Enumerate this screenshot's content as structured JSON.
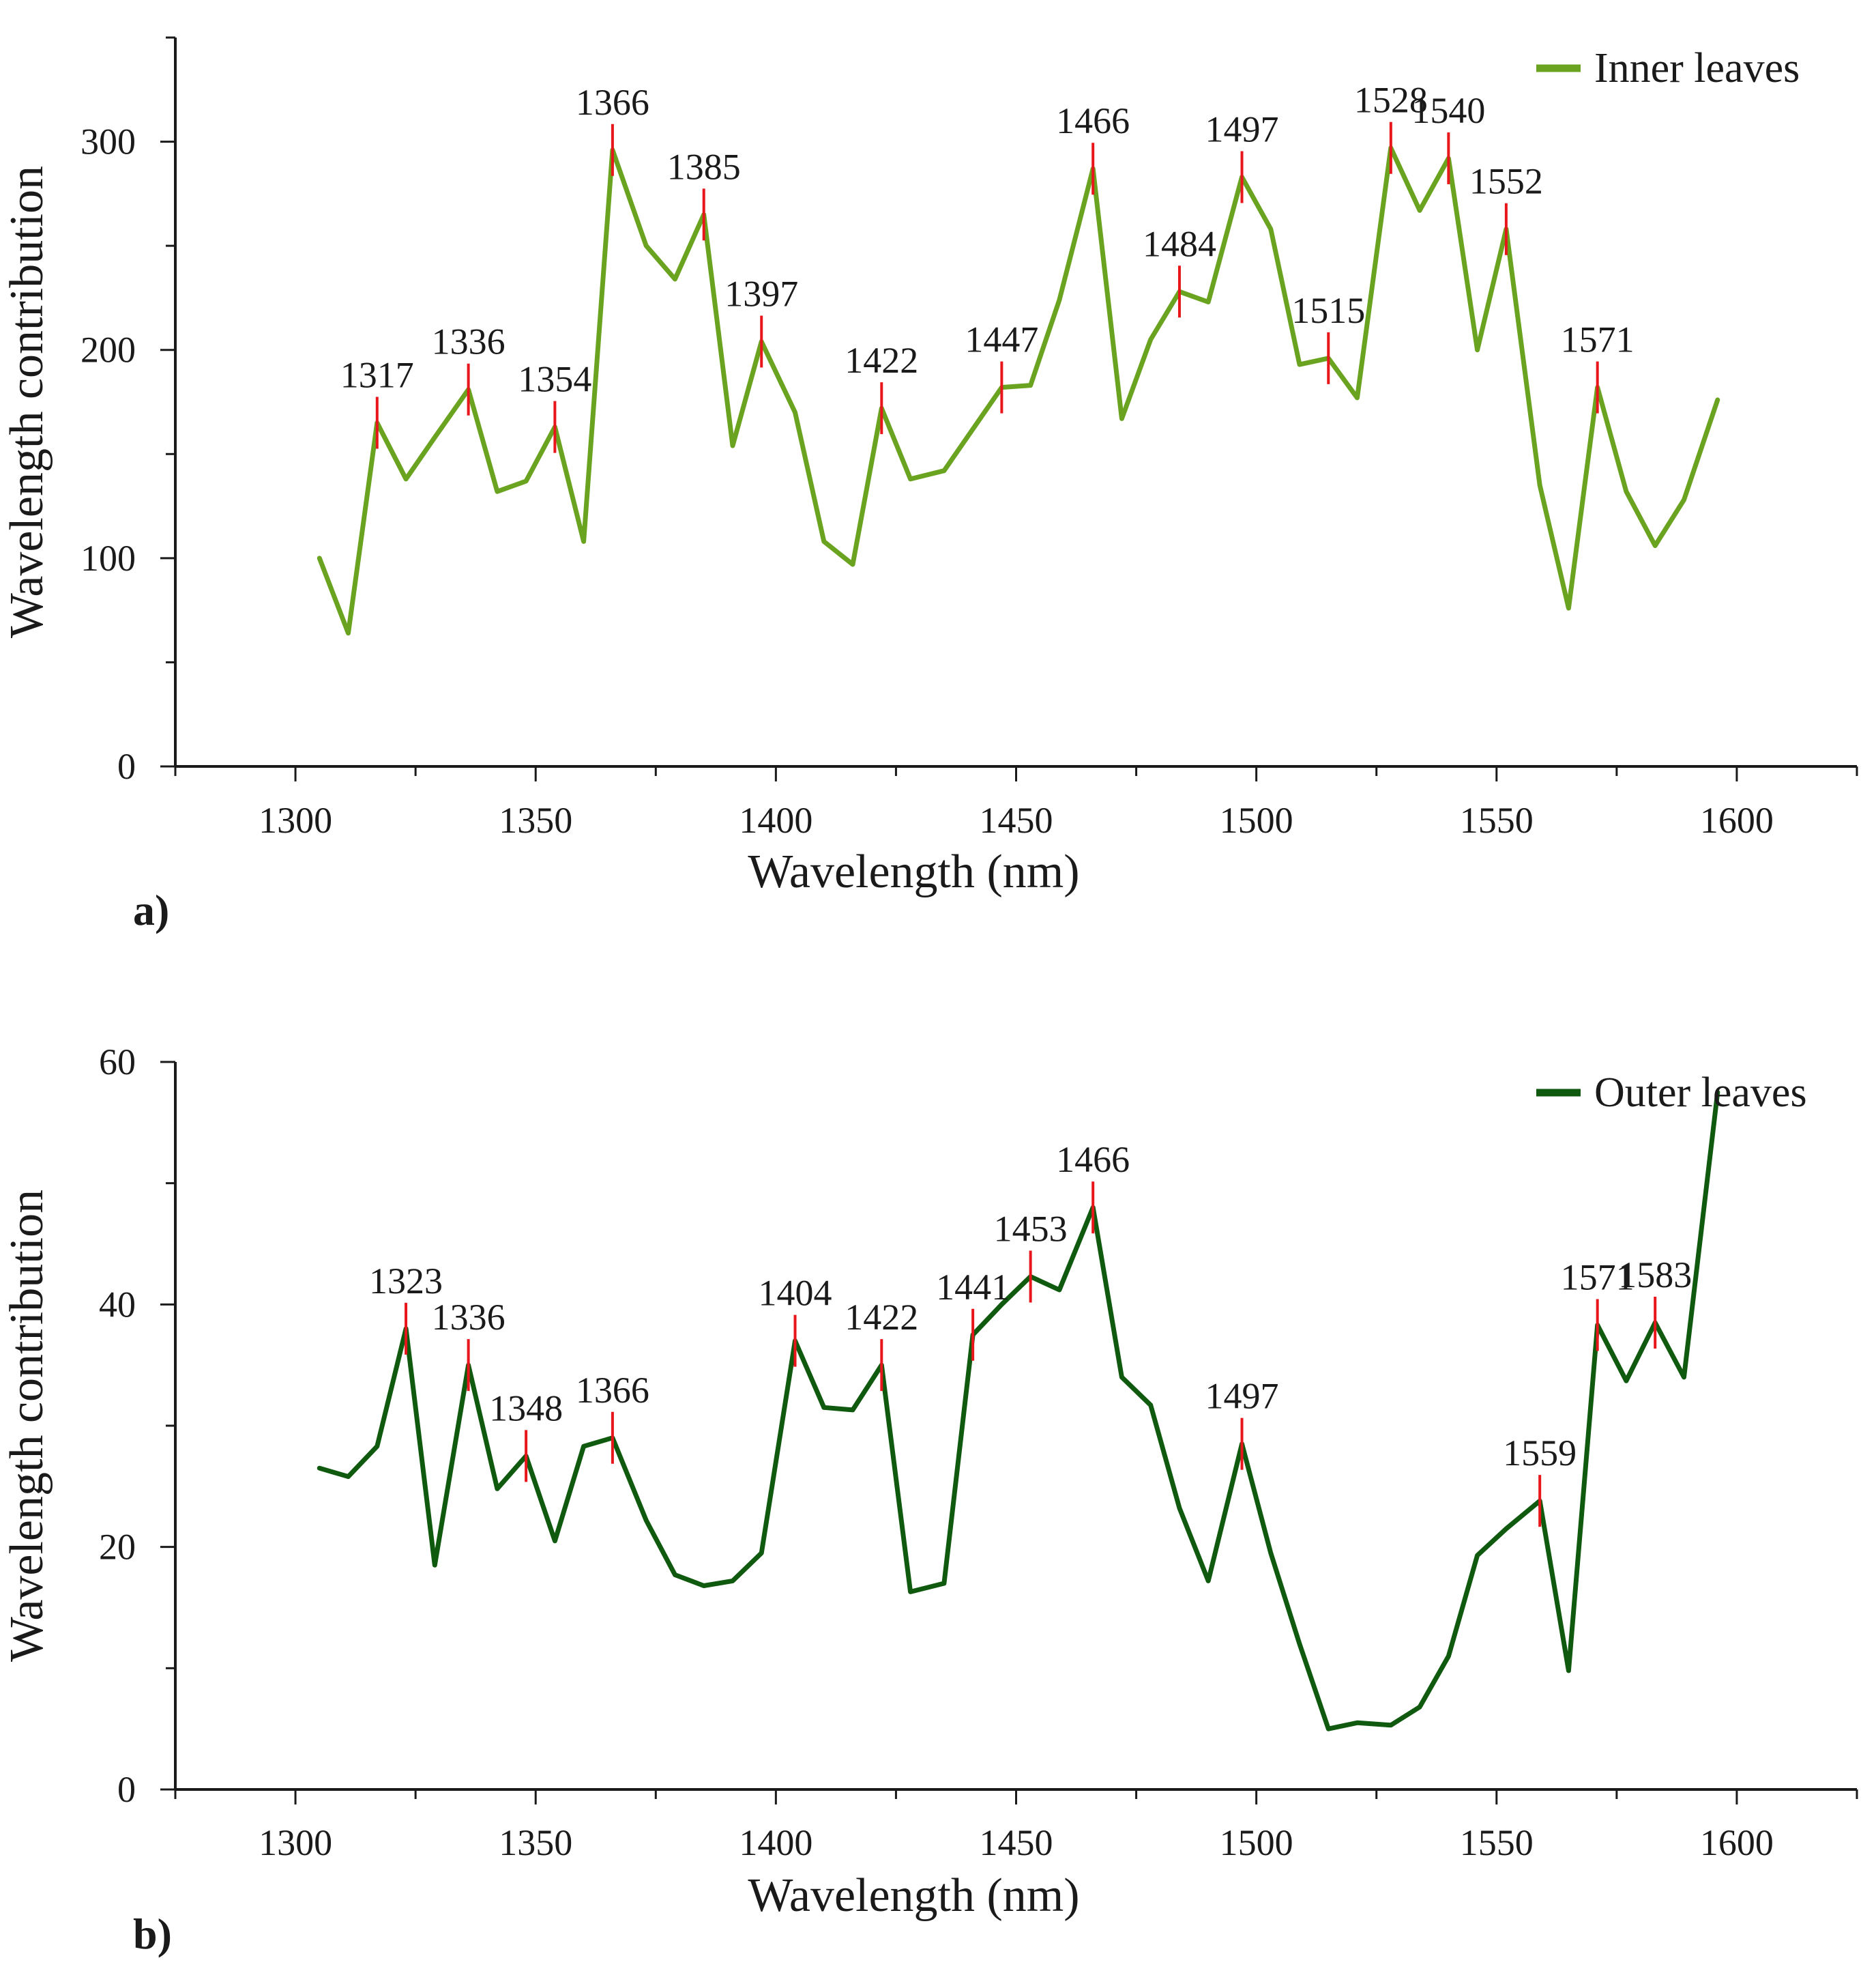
{
  "colors": {
    "axis": "#1a1a1a",
    "marker": "#e8161b"
  },
  "chart_data": [
    {
      "type": "line",
      "panel_label": "a)",
      "xlabel": "Wavelength (nm)",
      "ylabel": "Wavelength contribution",
      "xlim": [
        1275,
        1625
      ],
      "ylim": [
        0,
        350
      ],
      "xticks": [
        1300,
        1350,
        1400,
        1450,
        1500,
        1550,
        1600
      ],
      "yticks": [
        0,
        100,
        200,
        300
      ],
      "legend": "top-right",
      "series": [
        {
          "name": "Inner leaves",
          "color": "#6aa320",
          "x": [
            1305,
            1311,
            1317,
            1323,
            1329,
            1336,
            1342,
            1348,
            1354,
            1360,
            1366,
            1373,
            1379,
            1385,
            1391,
            1397,
            1404,
            1410,
            1416,
            1422,
            1428,
            1435,
            1441,
            1447,
            1453,
            1459,
            1466,
            1472,
            1478,
            1484,
            1490,
            1497,
            1503,
            1509,
            1515,
            1521,
            1528,
            1534,
            1540,
            1546,
            1552,
            1559,
            1565,
            1571,
            1577,
            1583,
            1589,
            1596
          ],
          "y": [
            100,
            64,
            165,
            138,
            158,
            181,
            132,
            137,
            163,
            108,
            296,
            250,
            234,
            265,
            154,
            204,
            170,
            108,
            97,
            172,
            138,
            142,
            162,
            182,
            183,
            224,
            287,
            167,
            205,
            228,
            223,
            283,
            258,
            193,
            196,
            177,
            297,
            267,
            292,
            200,
            258,
            135,
            76,
            182,
            132,
            106,
            128,
            176
          ]
        }
      ],
      "peaks": [
        {
          "label": "1317",
          "x": 1317,
          "y": 165
        },
        {
          "label": "1336",
          "x": 1336,
          "y": 181
        },
        {
          "label": "1354",
          "x": 1354,
          "y": 163
        },
        {
          "label": "1366",
          "x": 1366,
          "y": 296
        },
        {
          "label": "1385",
          "x": 1385,
          "y": 265
        },
        {
          "label": "1397",
          "x": 1397,
          "y": 204
        },
        {
          "label": "1422",
          "x": 1422,
          "y": 172
        },
        {
          "label": "1447",
          "x": 1447,
          "y": 182
        },
        {
          "label": "1466",
          "x": 1466,
          "y": 287
        },
        {
          "label": "1484",
          "x": 1484,
          "y": 228
        },
        {
          "label": "1497",
          "x": 1497,
          "y": 283
        },
        {
          "label": "1515",
          "x": 1515,
          "y": 196
        },
        {
          "label": "1528",
          "x": 1528,
          "y": 297
        },
        {
          "label": "1540",
          "x": 1540,
          "y": 292
        },
        {
          "label": "1552",
          "x": 1552,
          "y": 258
        },
        {
          "label": "1571",
          "x": 1571,
          "y": 182
        }
      ]
    },
    {
      "type": "line",
      "panel_label": "b)",
      "xlabel": "Wavelength (nm)",
      "ylabel": "Wavelength contribution",
      "xlim": [
        1275,
        1625
      ],
      "ylim": [
        0,
        60
      ],
      "xticks": [
        1300,
        1350,
        1400,
        1450,
        1500,
        1550,
        1600
      ],
      "yticks": [
        0,
        20,
        40,
        60
      ],
      "legend": "top-right",
      "series": [
        {
          "name": "Outer leaves",
          "color": "#0f5a0f",
          "x": [
            1305,
            1311,
            1317,
            1323,
            1329,
            1336,
            1342,
            1348,
            1354,
            1360,
            1366,
            1373,
            1379,
            1385,
            1391,
            1397,
            1404,
            1410,
            1416,
            1422,
            1428,
            1435,
            1441,
            1447,
            1453,
            1459,
            1466,
            1472,
            1478,
            1484,
            1490,
            1497,
            1503,
            1509,
            1515,
            1521,
            1528,
            1534,
            1540,
            1546,
            1552,
            1559,
            1565,
            1571,
            1577,
            1583,
            1589,
            1596
          ],
          "y": [
            26.5,
            25.8,
            28.3,
            38,
            18.5,
            35,
            24.8,
            27.5,
            20.5,
            28.3,
            29,
            22.2,
            17.7,
            16.8,
            17.2,
            19.5,
            37,
            31.5,
            31.3,
            35,
            16.3,
            17,
            37.5,
            40,
            42.3,
            41.2,
            48,
            34,
            31.7,
            23.2,
            17.2,
            28.5,
            19.5,
            12,
            5,
            5.5,
            5.3,
            6.8,
            11,
            19.3,
            21.5,
            23.8,
            9.8,
            38.3,
            33.7,
            38.5,
            34,
            57.5
          ]
        }
      ],
      "peaks": [
        {
          "label": "1323",
          "x": 1323,
          "y": 38
        },
        {
          "label": "1336",
          "x": 1336,
          "y": 35
        },
        {
          "label": "1348",
          "x": 1348,
          "y": 27.5
        },
        {
          "label": "1366",
          "x": 1366,
          "y": 29
        },
        {
          "label": "1404",
          "x": 1404,
          "y": 37
        },
        {
          "label": "1422",
          "x": 1422,
          "y": 35
        },
        {
          "label": "1441",
          "x": 1441,
          "y": 37.5
        },
        {
          "label": "1453",
          "x": 1453,
          "y": 42.3
        },
        {
          "label": "1466",
          "x": 1466,
          "y": 48
        },
        {
          "label": "1497",
          "x": 1497,
          "y": 28.5
        },
        {
          "label": "1559",
          "x": 1559,
          "y": 23.8
        },
        {
          "label": "1571",
          "x": 1571,
          "y": 38.3
        },
        {
          "label": "1583",
          "x": 1583,
          "y": 38.5
        }
      ]
    }
  ]
}
